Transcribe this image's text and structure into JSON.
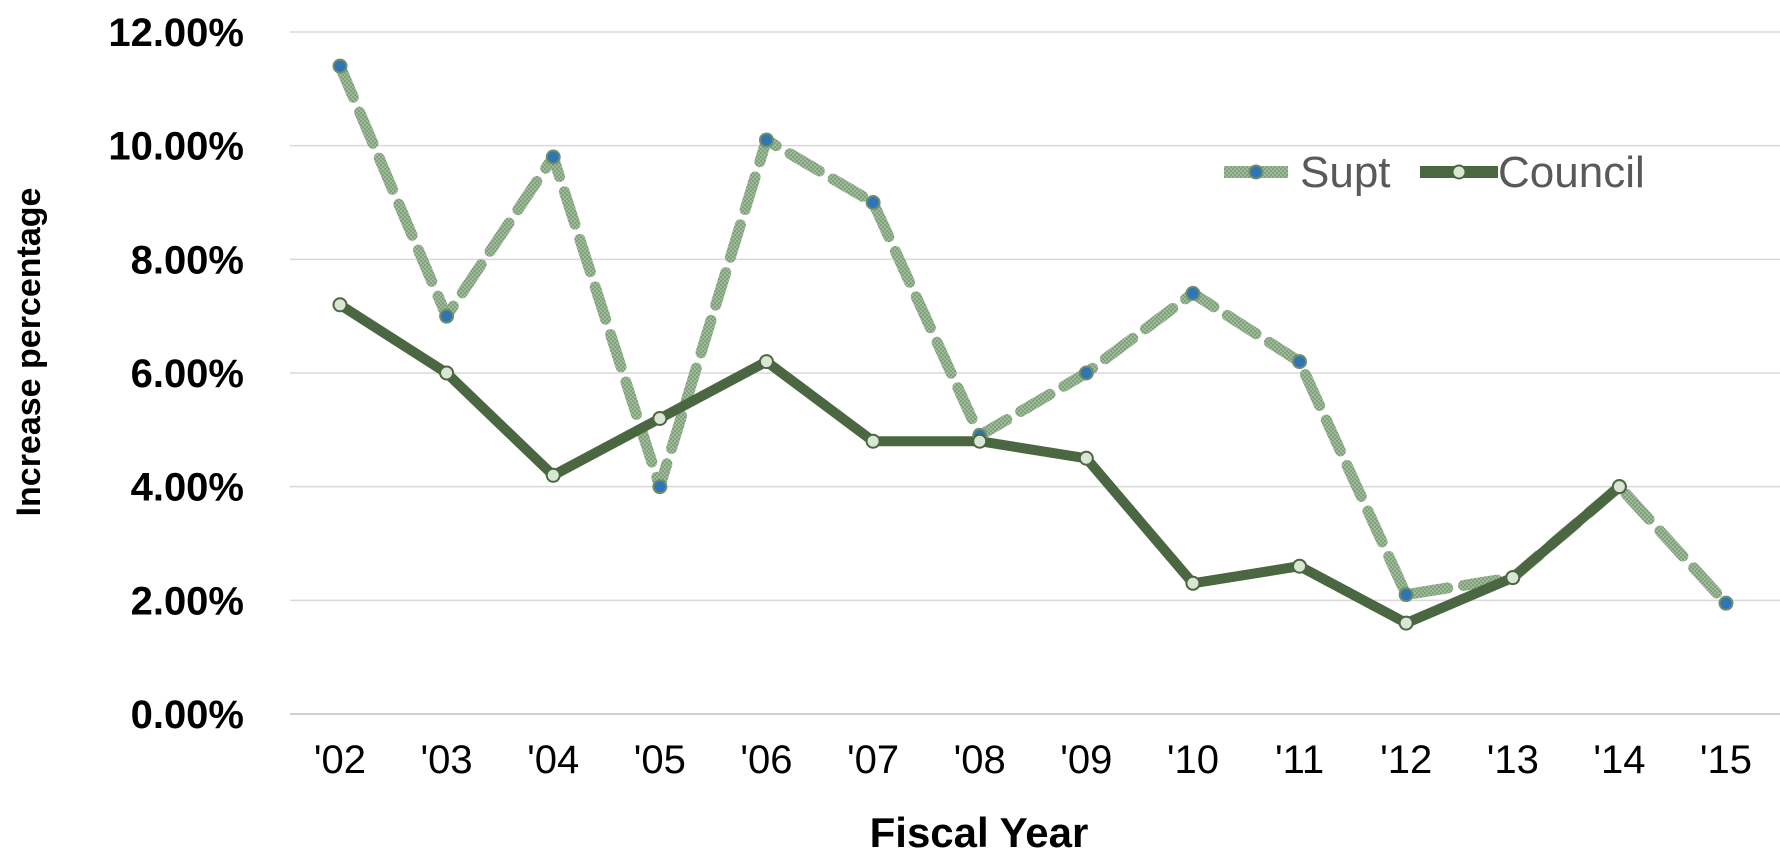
{
  "chart_data": {
    "type": "line",
    "title": "",
    "xlabel": "Fiscal Year",
    "ylabel": "Increase percentage",
    "categories": [
      "'02",
      "'03",
      "'04",
      "'05",
      "'06",
      "'07",
      "'08",
      "'09",
      "'10",
      "'11",
      "'12",
      "'13",
      "'14",
      "'15"
    ],
    "ylim": [
      0,
      12
    ],
    "yticks": [
      "0.00%",
      "2.00%",
      "4.00%",
      "6.00%",
      "8.00%",
      "10.00%",
      "12.00%"
    ],
    "grid": "horizontal",
    "legend_position": "top-right",
    "series": [
      {
        "name": "Supt",
        "style": "dashed",
        "color": "#8fae8b",
        "marker_color": "#2e75b6",
        "values": [
          11.4,
          7.0,
          9.8,
          4.0,
          10.1,
          9.0,
          4.9,
          6.0,
          7.4,
          6.2,
          2.1,
          2.4,
          4.0,
          1.95
        ]
      },
      {
        "name": "Council",
        "style": "solid",
        "color": "#4a6741",
        "marker_color": "#d9e6d3",
        "values": [
          7.2,
          6.0,
          4.2,
          5.2,
          6.2,
          4.8,
          4.8,
          4.5,
          2.3,
          2.6,
          1.6,
          2.4,
          4.0,
          null
        ]
      }
    ]
  }
}
